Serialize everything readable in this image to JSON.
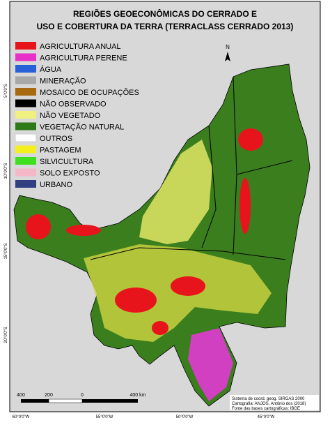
{
  "title": [
    "REGIÕES GEOECONÔMICAS DO CERRADO E",
    "USO E COBERTURA DA TERRA (TERRACLASS CERRADO 2013)"
  ],
  "legend": [
    {
      "label": "AGRICULTURA ANUAL",
      "color": "#e8141c"
    },
    {
      "label": "AGRICULTURA PERENE",
      "color": "#e830c8"
    },
    {
      "label": "ÁGUA",
      "color": "#2860d8"
    },
    {
      "label": "MINERAÇÃO",
      "color": "#a8a8a8"
    },
    {
      "label": "MOSAICO DE OCUPAÇÕES",
      "color": "#a86a10"
    },
    {
      "label": "NÃO OBSERVADO",
      "color": "#000000"
    },
    {
      "label": "NÃO VEGETADO",
      "color": "#f0f080"
    },
    {
      "label": "VEGETAÇÃO NATURAL",
      "color": "#2e7a18"
    },
    {
      "label": "OUTROS",
      "color": "#ffffff"
    },
    {
      "label": "PASTAGEM",
      "color": "#f4f020"
    },
    {
      "label": "SILVICULTURA",
      "color": "#40e020"
    },
    {
      "label": "SOLO EXPOSTO",
      "color": "#f4b8c8"
    },
    {
      "label": "URBANO",
      "color": "#304080"
    }
  ],
  "north_label": "N",
  "lat_labels": [
    "5°0'0\"S",
    "10°0'0\"S",
    "15°0'0\"S",
    "20°0'0\"S"
  ],
  "lon_labels": [
    "60°0'0\"W",
    "55°0'0\"W",
    "50°0'0\"W",
    "45°0'0\"W"
  ],
  "scale_labels": [
    "400",
    "200",
    "0",
    "400 km"
  ],
  "credits": [
    "Sistema de coord. geog. SIRGAS 2000",
    "Cartografia: ANJOS, Antônio dos (2018)",
    "Fonte das bases cartográficas: IBGE"
  ]
}
